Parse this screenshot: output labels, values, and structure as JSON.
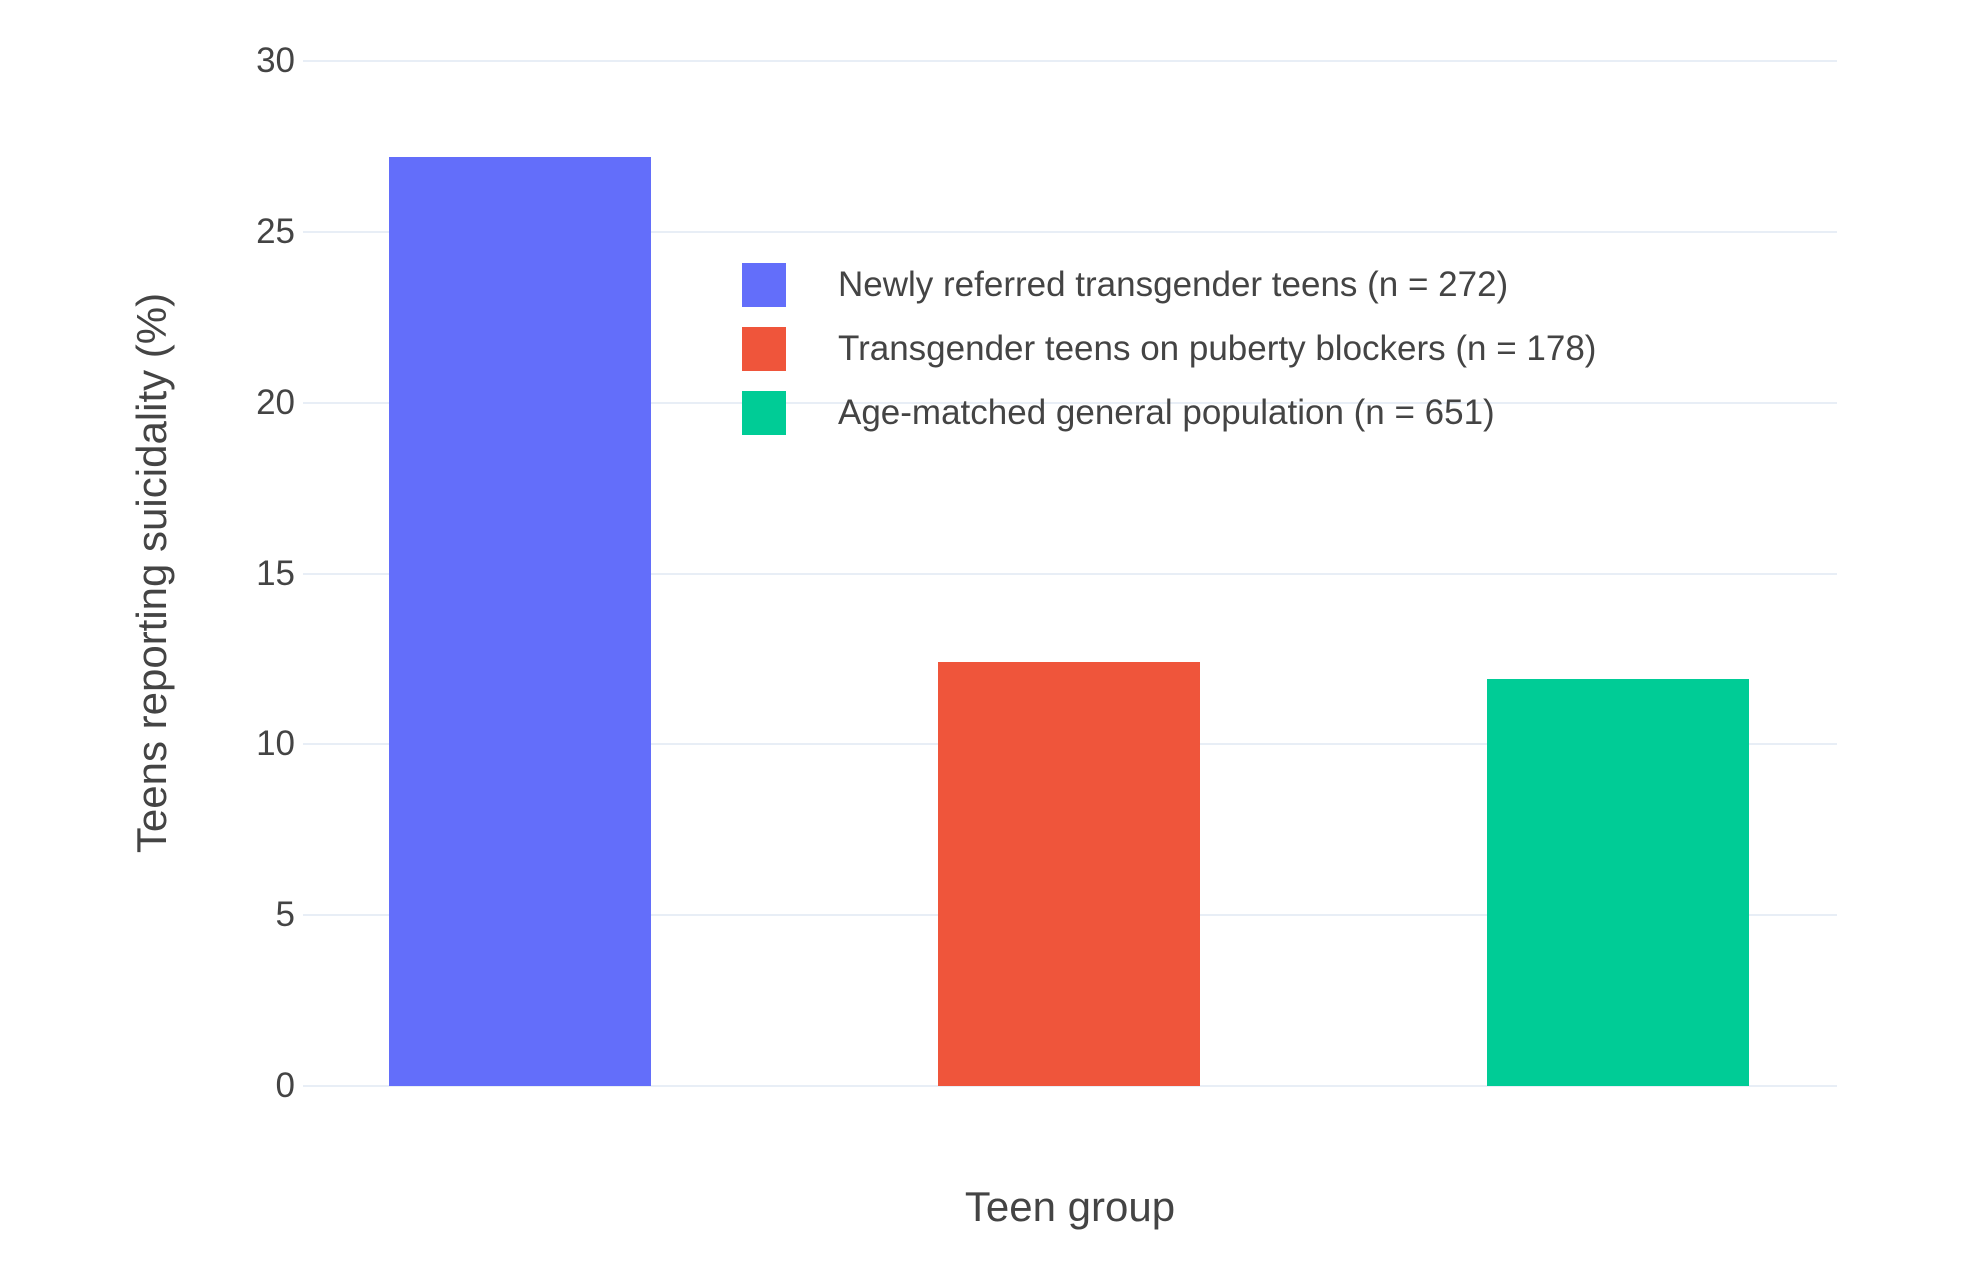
{
  "chart_data": {
    "type": "bar",
    "title": "",
    "xlabel": "Teen group",
    "ylabel": "Teens reporting suicidality (%)",
    "ylim": [
      0,
      30
    ],
    "yticks": [
      0,
      5,
      10,
      15,
      20,
      25,
      30
    ],
    "grid": true,
    "gridcolor": "#E8EEF6",
    "background": "#FFFFFF",
    "text_color": "#444444",
    "legend_position": "inside-top-center",
    "series": [
      {
        "name": "Newly referred transgender teens (n = 272)",
        "value": 27.2,
        "color": "#636EFA"
      },
      {
        "name": "Transgender teens on puberty blockers (n = 178)",
        "value": 12.4,
        "color": "#EF553B"
      },
      {
        "name": "Age-matched general population (n = 651)",
        "value": 11.9,
        "color": "#00CC96"
      }
    ]
  }
}
